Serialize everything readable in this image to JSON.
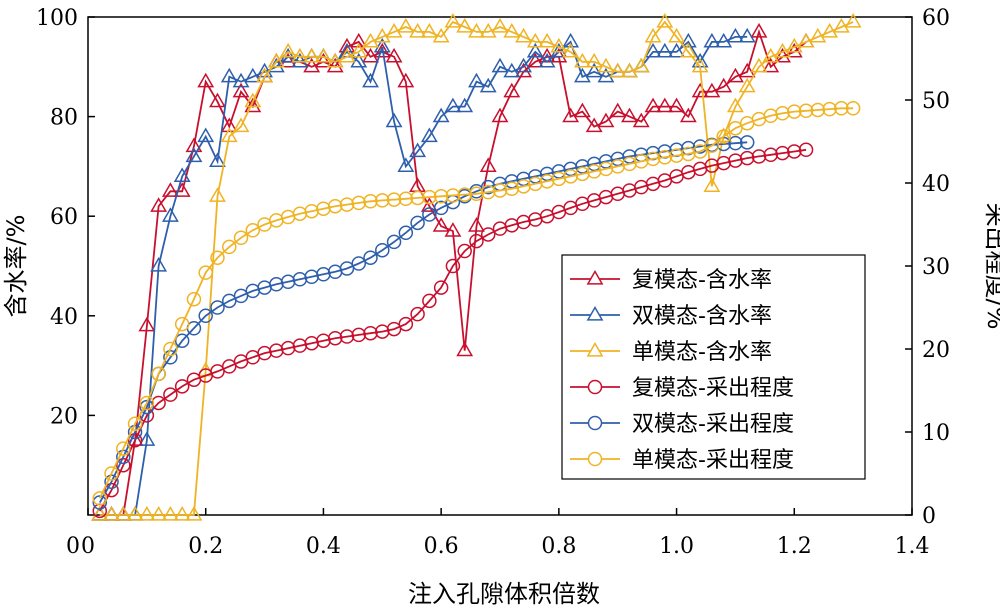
{
  "chart_data": {
    "type": "line",
    "xlabel": "注入孔隙体积倍数",
    "ylabel_left": "含水率/%",
    "ylabel_right": "采出程度/%",
    "xlim": [
      0,
      1.4
    ],
    "ylim_left": [
      0,
      100
    ],
    "ylim_right": [
      0,
      60
    ],
    "x_ticks": [
      "0",
      "0.2",
      "0.4",
      "0.6",
      "0.8",
      "1.0",
      "1.2",
      "1.4"
    ],
    "y_left_ticks": [
      "20",
      "40",
      "60",
      "80",
      "100"
    ],
    "y_right_ticks": [
      "0",
      "10",
      "20",
      "30",
      "40",
      "50",
      "60"
    ],
    "legend_position": "lower-right",
    "grid": false,
    "series": [
      {
        "name": "复模态-含水率",
        "axis": "left",
        "marker": "triangle",
        "color": "#c8102e",
        "x": [
          0.02,
          0.04,
          0.06,
          0.08,
          0.1,
          0.12,
          0.14,
          0.16,
          0.18,
          0.2,
          0.22,
          0.24,
          0.26,
          0.28,
          0.3,
          0.32,
          0.34,
          0.36,
          0.38,
          0.4,
          0.42,
          0.44,
          0.46,
          0.48,
          0.5,
          0.52,
          0.54,
          0.56,
          0.58,
          0.6,
          0.62,
          0.64,
          0.66,
          0.68,
          0.7,
          0.72,
          0.74,
          0.76,
          0.78,
          0.8,
          0.82,
          0.84,
          0.86,
          0.88,
          0.9,
          0.92,
          0.94,
          0.96,
          0.98,
          1.0,
          1.02,
          1.04,
          1.06,
          1.08,
          1.1,
          1.12,
          1.14,
          1.16,
          1.18,
          1.2,
          1.22
        ],
        "y": [
          0,
          0,
          0,
          15,
          38,
          62,
          65,
          65,
          74,
          87,
          83,
          78,
          85,
          82,
          88,
          91,
          91,
          91,
          90,
          91,
          90,
          94,
          95,
          92,
          93,
          92,
          87,
          66,
          62,
          58,
          57,
          33,
          58,
          70,
          80,
          85,
          89,
          91,
          92,
          92,
          80,
          81,
          78,
          79,
          81,
          80,
          79,
          82,
          82,
          82,
          80,
          85,
          85,
          86,
          88,
          89,
          97,
          90,
          92,
          93,
          95
        ]
      },
      {
        "name": "双模态-含水率",
        "axis": "left",
        "marker": "triangle",
        "color": "#2e5fac",
        "x": [
          0.02,
          0.04,
          0.06,
          0.08,
          0.1,
          0.12,
          0.14,
          0.16,
          0.18,
          0.2,
          0.22,
          0.24,
          0.26,
          0.28,
          0.3,
          0.32,
          0.34,
          0.36,
          0.38,
          0.4,
          0.42,
          0.44,
          0.46,
          0.48,
          0.5,
          0.52,
          0.54,
          0.56,
          0.58,
          0.6,
          0.62,
          0.64,
          0.66,
          0.68,
          0.7,
          0.72,
          0.74,
          0.76,
          0.78,
          0.8,
          0.82,
          0.84,
          0.86,
          0.88,
          0.9,
          0.92,
          0.94,
          0.96,
          0.98,
          1.0,
          1.02,
          1.04,
          1.06,
          1.08,
          1.1,
          1.12
        ],
        "y": [
          0,
          0,
          0,
          0,
          15,
          50,
          60,
          68,
          72,
          76,
          71,
          88,
          87,
          88,
          89,
          90,
          92,
          91,
          92,
          92,
          91,
          93,
          91,
          87,
          94,
          79,
          70,
          73,
          76,
          80,
          82,
          82,
          87,
          86,
          90,
          89,
          90,
          93,
          91,
          93,
          95,
          88,
          89,
          88,
          89,
          89,
          90,
          93,
          93,
          93,
          95,
          91,
          95,
          95,
          96,
          96
        ]
      },
      {
        "name": "单模态-含水率",
        "axis": "left",
        "marker": "triangle",
        "color": "#f0b323",
        "x": [
          0.02,
          0.04,
          0.06,
          0.08,
          0.1,
          0.12,
          0.14,
          0.16,
          0.18,
          0.2,
          0.22,
          0.24,
          0.26,
          0.28,
          0.3,
          0.32,
          0.34,
          0.36,
          0.38,
          0.4,
          0.42,
          0.44,
          0.46,
          0.48,
          0.5,
          0.52,
          0.54,
          0.56,
          0.58,
          0.6,
          0.62,
          0.64,
          0.66,
          0.68,
          0.7,
          0.72,
          0.74,
          0.76,
          0.78,
          0.8,
          0.82,
          0.84,
          0.86,
          0.88,
          0.9,
          0.92,
          0.94,
          0.96,
          0.98,
          1.0,
          1.02,
          1.04,
          1.06,
          1.08,
          1.1,
          1.12,
          1.14,
          1.16,
          1.18,
          1.2,
          1.22,
          1.24,
          1.26,
          1.28,
          1.3
        ],
        "y": [
          0,
          0,
          0,
          0,
          0,
          0,
          0,
          0,
          0,
          29,
          64,
          76,
          78,
          83,
          88,
          91,
          93,
          92,
          92,
          92,
          91,
          92,
          93,
          95,
          96,
          97,
          98,
          97,
          97,
          96,
          99,
          98,
          97,
          97,
          98,
          97,
          96,
          95,
          95,
          94,
          93,
          91,
          91,
          90,
          89,
          89,
          90,
          96,
          99,
          96,
          93,
          90,
          66,
          76,
          82,
          86,
          90,
          92,
          93,
          94,
          95,
          96,
          97,
          98,
          99
        ]
      },
      {
        "name": "复模态-采出程度",
        "axis": "right",
        "marker": "circle",
        "color": "#c8102e",
        "x": [
          0.02,
          0.04,
          0.06,
          0.08,
          0.1,
          0.12,
          0.14,
          0.16,
          0.18,
          0.2,
          0.22,
          0.24,
          0.26,
          0.28,
          0.3,
          0.32,
          0.34,
          0.36,
          0.38,
          0.4,
          0.42,
          0.44,
          0.46,
          0.48,
          0.5,
          0.52,
          0.54,
          0.56,
          0.58,
          0.6,
          0.62,
          0.64,
          0.66,
          0.68,
          0.7,
          0.72,
          0.74,
          0.76,
          0.78,
          0.8,
          0.82,
          0.84,
          0.86,
          0.88,
          0.9,
          0.92,
          0.94,
          0.96,
          0.98,
          1.0,
          1.02,
          1.04,
          1.06,
          1.08,
          1.1,
          1.12,
          1.14,
          1.16,
          1.18,
          1.2,
          1.22
        ],
        "y": [
          0.5,
          3,
          6,
          9,
          12,
          13.5,
          14.5,
          15.5,
          16.3,
          16.8,
          17.3,
          17.9,
          18.5,
          19,
          19.5,
          19.8,
          20.1,
          20.4,
          20.7,
          21,
          21.3,
          21.5,
          21.7,
          21.9,
          22.1,
          22.4,
          23,
          24.2,
          25.8,
          27.4,
          30,
          31.8,
          33,
          33.8,
          34.5,
          34.9,
          35.3,
          35.6,
          36,
          36.5,
          37,
          37.5,
          37.9,
          38.3,
          38.7,
          39.1,
          39.5,
          39.9,
          40.3,
          40.8,
          41.3,
          41.7,
          42.1,
          42.4,
          42.7,
          43,
          43.2,
          43.4,
          43.6,
          43.8,
          44
        ]
      },
      {
        "name": "双模态-采出程度",
        "axis": "right",
        "marker": "circle",
        "color": "#2e5fac",
        "x": [
          0.02,
          0.04,
          0.06,
          0.08,
          0.1,
          0.12,
          0.14,
          0.16,
          0.18,
          0.2,
          0.22,
          0.24,
          0.26,
          0.28,
          0.3,
          0.32,
          0.34,
          0.36,
          0.38,
          0.4,
          0.42,
          0.44,
          0.46,
          0.48,
          0.5,
          0.52,
          0.54,
          0.56,
          0.58,
          0.6,
          0.62,
          0.64,
          0.66,
          0.68,
          0.7,
          0.72,
          0.74,
          0.76,
          0.78,
          0.8,
          0.82,
          0.84,
          0.86,
          0.88,
          0.9,
          0.92,
          0.94,
          0.96,
          0.98,
          1.0,
          1.02,
          1.04,
          1.06,
          1.08,
          1.1,
          1.12
        ],
        "y": [
          1.5,
          4,
          7,
          10,
          13,
          17,
          19,
          21,
          22.5,
          24,
          25,
          25.8,
          26.4,
          27,
          27.4,
          27.8,
          28.1,
          28.4,
          28.7,
          29,
          29.3,
          29.7,
          30.3,
          31,
          31.9,
          32.9,
          34,
          35.2,
          36.2,
          37,
          37.7,
          38.4,
          39,
          39.5,
          39.9,
          40.2,
          40.5,
          40.8,
          41.1,
          41.4,
          41.7,
          42,
          42.3,
          42.6,
          42.9,
          43.2,
          43.4,
          43.6,
          43.8,
          44,
          44.2,
          44.4,
          44.6,
          44.7,
          44.8,
          44.9
        ]
      },
      {
        "name": "单模态-采出程度",
        "axis": "right",
        "marker": "circle",
        "color": "#f0b323",
        "x": [
          0.02,
          0.04,
          0.06,
          0.08,
          0.1,
          0.12,
          0.14,
          0.16,
          0.18,
          0.2,
          0.22,
          0.24,
          0.26,
          0.28,
          0.3,
          0.32,
          0.34,
          0.36,
          0.38,
          0.4,
          0.42,
          0.44,
          0.46,
          0.48,
          0.5,
          0.52,
          0.54,
          0.56,
          0.58,
          0.6,
          0.62,
          0.64,
          0.66,
          0.68,
          0.7,
          0.72,
          0.74,
          0.76,
          0.78,
          0.8,
          0.82,
          0.84,
          0.86,
          0.88,
          0.9,
          0.92,
          0.94,
          0.96,
          0.98,
          1.0,
          1.02,
          1.04,
          1.06,
          1.08,
          1.1,
          1.12,
          1.14,
          1.16,
          1.18,
          1.2,
          1.22,
          1.24,
          1.26,
          1.28,
          1.3
        ],
        "y": [
          2,
          5,
          8,
          11,
          13.5,
          17,
          20,
          23,
          26,
          29.2,
          31,
          32.3,
          33.4,
          34.3,
          35,
          35.5,
          35.9,
          36.3,
          36.6,
          36.9,
          37.2,
          37.4,
          37.6,
          37.8,
          37.9,
          38,
          38.1,
          38.2,
          38.3,
          38.4,
          38.5,
          38.6,
          38.7,
          38.9,
          39.1,
          39.3,
          39.6,
          39.9,
          40.2,
          40.5,
          40.8,
          41.1,
          41.4,
          41.7,
          42,
          42.3,
          42.6,
          42.9,
          43.1,
          43.3,
          43.5,
          43.8,
          44.5,
          45.6,
          46.6,
          47.2,
          47.7,
          48.1,
          48.4,
          48.6,
          48.7,
          48.8,
          48.9,
          49,
          49
        ]
      }
    ]
  }
}
